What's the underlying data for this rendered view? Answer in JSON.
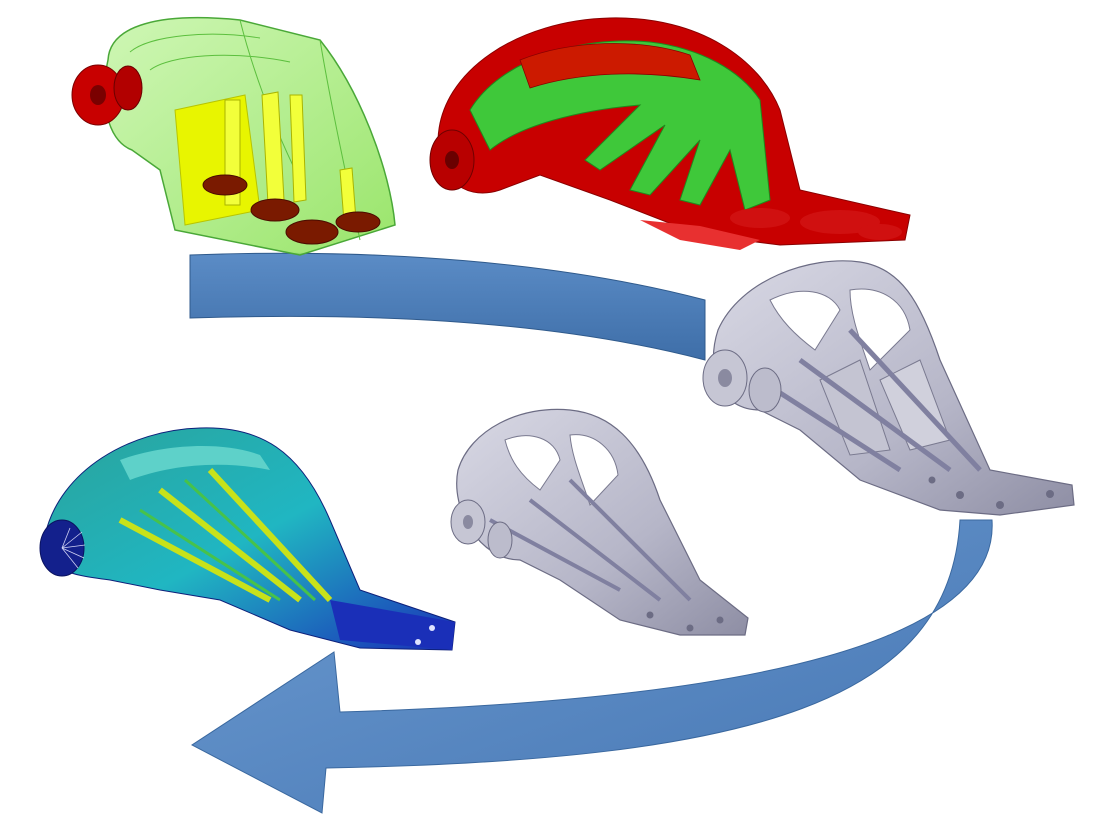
{
  "diagram": {
    "stages": [
      {
        "id": "design-space",
        "icon": "design-space-wireframe-icon"
      },
      {
        "id": "topology-optimization",
        "icon": "topology-optimization-result-icon"
      },
      {
        "id": "cad-interpretation",
        "icon": "bracket-cad-model-icon"
      },
      {
        "id": "refined-cad-model",
        "icon": "bracket-cad-model-small-icon"
      },
      {
        "id": "fea-validation",
        "icon": "bracket-stress-analysis-icon"
      }
    ],
    "flow": [
      "design-space",
      "topology-optimization",
      "cad-interpretation",
      "refined-cad-model",
      "fea-validation"
    ],
    "colors": {
      "arrow": "#4d7fba",
      "arrow_dark": "#385f8f",
      "design_green": "#9be86a",
      "design_yellow": "#e8f500",
      "fixture_red": "#c80000",
      "optimized_green": "#3fc83a",
      "cad_gray": "#b9b9c9",
      "fea_blue": "#1a2fb8",
      "fea_cyan": "#20b6c2"
    }
  }
}
